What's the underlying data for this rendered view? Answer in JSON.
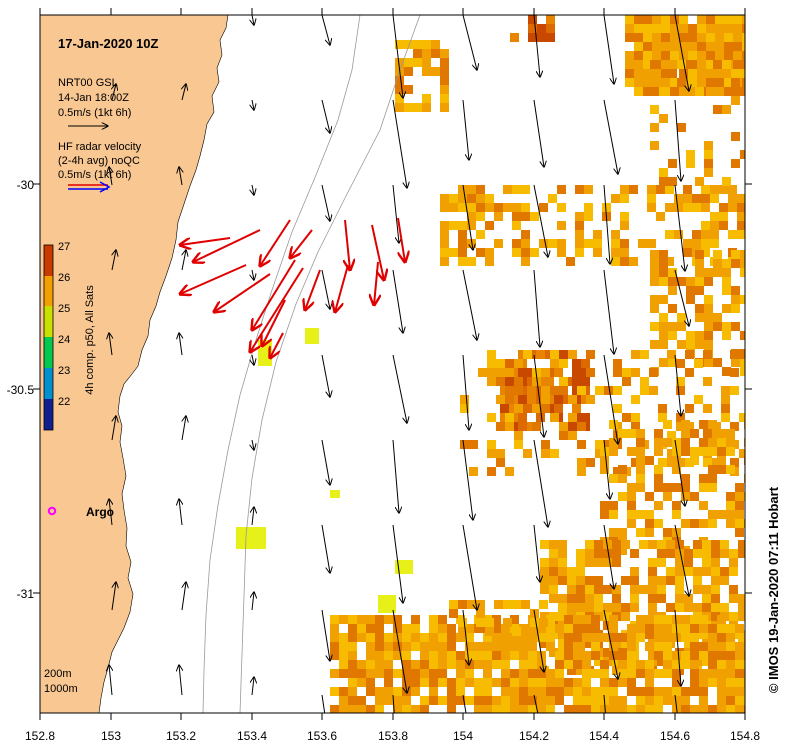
{
  "map": {
    "title": "17-Jan-2020 10Z",
    "model": {
      "line1": "NRT00 GSL",
      "line2": "14-Jan 18:00Z",
      "scale": "0.5m/s (1kt 6h)"
    },
    "radar": {
      "line1": "HF radar velocity",
      "line2": "(2-4h avg) noQC",
      "scale": "0.5m/s (1kt 6h)"
    },
    "colorbar": {
      "label": "4h comp. p50, All Sats",
      "ticks": [
        "27",
        "26",
        "25",
        "24",
        "23",
        "22"
      ]
    },
    "argo_label": "Argo",
    "depth_labels": {
      "d200": "200m",
      "d1000": "1000m"
    },
    "credit": "© IMOS 19-Jan-2020 07:11 Hobart",
    "x_ticks": [
      "152.8",
      "153",
      "153.2",
      "153.4",
      "153.6",
      "153.8",
      "154",
      "154.2",
      "154.4",
      "154.6",
      "154.8"
    ],
    "y_ticks": [
      "-30",
      "-30.5",
      "-31"
    ],
    "colors": {
      "land": "#f9c792",
      "radar_arrow": "#e00000",
      "scale_blue": "#0000ff",
      "argo": "#ff00ff"
    }
  }
}
